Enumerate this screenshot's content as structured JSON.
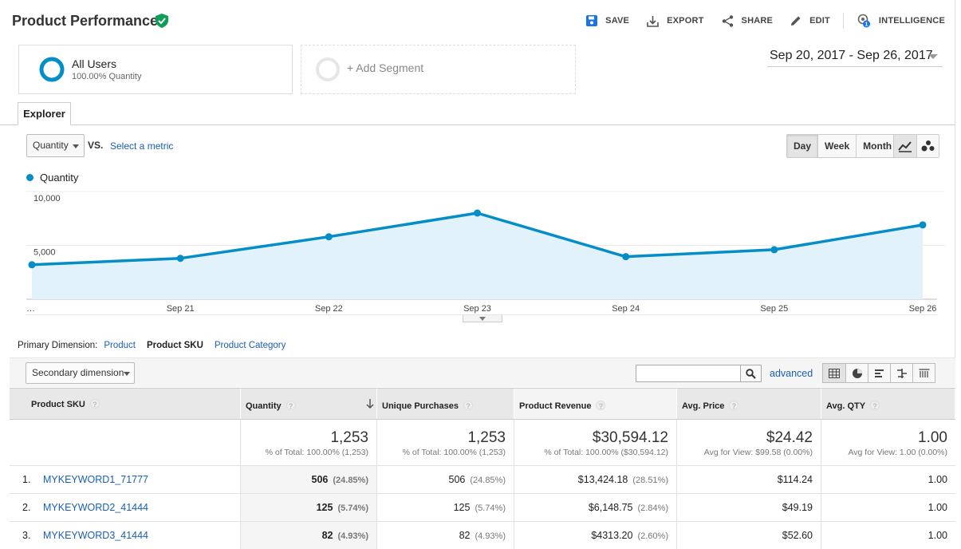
{
  "header": {
    "title": "Product Performance",
    "actions": [
      {
        "label": "SAVE",
        "icon": "save-icon"
      },
      {
        "label": "EXPORT",
        "icon": "export-icon"
      },
      {
        "label": "SHARE",
        "icon": "share-icon"
      },
      {
        "label": "EDIT",
        "icon": "pencil-icon"
      },
      {
        "label": "INTELLIGENCE",
        "icon": "intelligence-icon",
        "badge": "1"
      }
    ]
  },
  "segments": {
    "active": {
      "name": "All Users",
      "sub": "100.00% Quantity"
    },
    "add_label": "+ Add Segment"
  },
  "date_range": "Sep 20, 2017 - Sep 26, 2017",
  "tabs": {
    "explorer": "Explorer"
  },
  "controls": {
    "metric": "Quantity",
    "vs": "VS.",
    "select_metric": "Select a metric",
    "periods": [
      "Day",
      "Week",
      "Month"
    ],
    "active_period": "Day"
  },
  "chart_data": {
    "type": "area",
    "series": [
      {
        "name": "Quantity",
        "values": [
          3200,
          3800,
          5800,
          8000,
          3950,
          4600,
          6900
        ]
      }
    ],
    "x": [
      "…",
      "Sep 21",
      "Sep 22",
      "Sep 23",
      "Sep 24",
      "Sep 25",
      "Sep 26"
    ],
    "y_ticks": [
      {
        "value": 10000,
        "label": "10,000"
      },
      {
        "value": 5000,
        "label": "5,000"
      }
    ],
    "ylim": [
      0,
      10000
    ],
    "color": "#058dc7",
    "fill": "#e1f2fa",
    "grid": true,
    "legend": "top-left"
  },
  "dimensions": {
    "label": "Primary Dimension:",
    "items": [
      {
        "label": "Product",
        "active": false
      },
      {
        "label": "Product SKU",
        "active": true
      },
      {
        "label": "Product Category",
        "active": false
      }
    ]
  },
  "toolbar": {
    "secondary_dimension": "Secondary dimension",
    "search_value": "",
    "advanced": "advanced"
  },
  "table": {
    "columns": [
      "Product SKU",
      "Quantity",
      "Unique Purchases",
      "Product Revenue",
      "Avg. Price",
      "Avg. QTY"
    ],
    "totals": [
      {
        "value": "1,253",
        "sub": "% of Total: 100.00% (1,253)"
      },
      {
        "value": "1,253",
        "sub": "% of Total: 100.00% (1,253)"
      },
      {
        "value": "$30,594.12",
        "sub": "% of Total: 100.00% ($30,594.12)"
      },
      {
        "value": "$24.42",
        "sub": "Avg for View: $99.58 (0.00%)"
      },
      {
        "value": "1.00",
        "sub": "Avg for View: 1.00 (0.00%)"
      }
    ],
    "rows": [
      {
        "index": "1.",
        "sku": "MYKEYWORD1_71777",
        "qty": "506",
        "qty_pct": "(24.85%)",
        "uniq": "506",
        "uniq_pct": "(24.85%)",
        "rev": "$13,424.18",
        "rev_pct": "(28.51%)",
        "price": "$114.24",
        "avgqty": "1.00"
      },
      {
        "index": "2.",
        "sku": "MYKEYWORD2_41444",
        "qty": "125",
        "qty_pct": "(5.74%)",
        "uniq": "125",
        "uniq_pct": "(5.74%)",
        "rev": "$6,148.75",
        "rev_pct": "(2.84%)",
        "price": "$49.19",
        "avgqty": "1.00"
      },
      {
        "index": "3.",
        "sku": "MYKEYWORD3_41444",
        "qty": "82",
        "qty_pct": "(4.93%)",
        "uniq": "82",
        "uniq_pct": "(4.93%)",
        "rev": "$4313.20",
        "rev_pct": "(2.60%)",
        "price": "$52.60",
        "avgqty": "1.00"
      }
    ]
  },
  "colors": {
    "accent": "#058dc7",
    "link": "#1a5fb4",
    "verified": "#0f9d58"
  }
}
